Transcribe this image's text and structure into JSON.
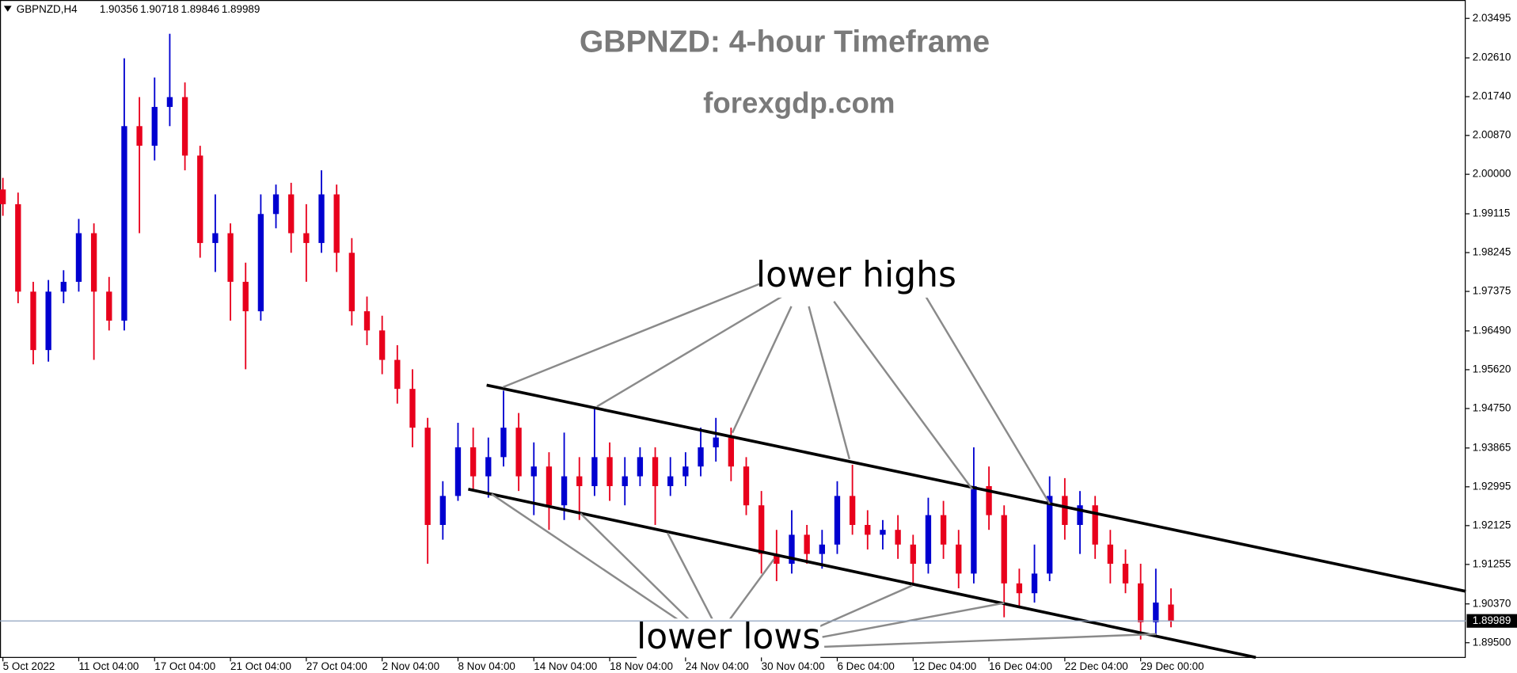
{
  "chart_data": {
    "type": "candlestick",
    "symbol": "GBPNZD,H4",
    "title": "GBPNZD: 4-hour Timeframe",
    "subtitle": "forexgdp.com",
    "annotations": [
      "lower highs",
      "lower lows"
    ],
    "up_color": "#0000d0",
    "down_color": "#e8001c",
    "ylim": [
      1.8917,
      2.0382
    ],
    "yticks": [
      2.03495,
      {
        "value": 2.0261,
        "label": "2.02610"
      },
      {
        "value": 2.0174,
        "label": "2.01740"
      },
      {
        "value": 2.0087,
        "label": "2.00870"
      },
      {
        "value": 2,
        "label": "2.00000"
      },
      1.99115,
      1.98245,
      1.97375,
      {
        "value": 1.9649,
        "label": "1.96490"
      },
      {
        "value": 1.9562,
        "label": "1.95620"
      },
      {
        "value": 1.9475,
        "label": "1.94750"
      },
      1.93865,
      1.92995,
      1.92125,
      1.91255,
      {
        "value": 1.9037,
        "label": "1.90370"
      },
      {
        "value": 1.895,
        "label": "1.89500"
      }
    ],
    "categories": [
      "5 Oct 2022",
      null,
      null,
      null,
      null,
      "11 Oct 04:00",
      null,
      null,
      null,
      null,
      "17 Oct 04:00",
      null,
      null,
      null,
      null,
      "21 Oct 04:00",
      null,
      null,
      null,
      null,
      "27 Oct 04:00",
      null,
      null,
      null,
      null,
      "2 Nov 04:00",
      null,
      null,
      null,
      null,
      "8 Nov 04:00",
      null,
      null,
      null,
      null,
      "14 Nov 04:00",
      null,
      null,
      null,
      null,
      "18 Nov 04:00",
      null,
      null,
      null,
      null,
      "24 Nov 04:00",
      null,
      null,
      null,
      null,
      "30 Nov 04:00",
      null,
      null,
      null,
      null,
      "6 Dec 04:00",
      null,
      null,
      null,
      null,
      "12 Dec 04:00",
      null,
      null,
      null,
      null,
      "16 Dec 04:00",
      null,
      null,
      null,
      null,
      "22 Dec 04:00",
      null,
      null,
      null,
      null,
      "29 Dec 00:00",
      null,
      null
    ],
    "ohlc": [
      [
        1.9966,
        1.9992,
        1.9907,
        1.9933
      ],
      [
        1.9933,
        1.9959,
        1.9711,
        1.9737
      ],
      [
        1.9737,
        1.9759,
        1.9574,
        1.9606
      ],
      [
        1.9606,
        1.9763,
        1.958,
        1.9737
      ],
      [
        1.9737,
        1.9785,
        1.9711,
        1.9759
      ],
      [
        1.9759,
        1.99,
        1.9737,
        1.9868
      ],
      [
        1.9868,
        1.989,
        1.9584,
        1.9737
      ],
      [
        1.9737,
        1.977,
        1.965,
        1.9672
      ],
      [
        1.9672,
        2.026,
        1.965,
        2.0108
      ],
      [
        2.0108,
        2.0173,
        1.9868,
        2.0064
      ],
      [
        2.0064,
        2.0217,
        2.0031,
        2.0151
      ],
      [
        2.0151,
        2.0315,
        2.0108,
        2.0173
      ],
      [
        2.0173,
        2.0206,
        2.0009,
        2.0042
      ],
      [
        2.0042,
        2.0064,
        1.9813,
        1.9846
      ],
      [
        1.9846,
        1.9955,
        1.9781,
        1.9868
      ],
      [
        1.9868,
        1.989,
        1.9672,
        1.9759
      ],
      [
        1.9759,
        1.9802,
        1.9563,
        1.9693
      ],
      [
        1.9693,
        1.9955,
        1.9672,
        1.9911
      ],
      [
        1.9911,
        1.9977,
        1.9879,
        1.9955
      ],
      [
        1.9955,
        1.9981,
        1.9824,
        1.9868
      ],
      [
        1.9868,
        1.9933,
        1.9759,
        1.9846
      ],
      [
        1.9846,
        2.0009,
        1.9824,
        1.9955
      ],
      [
        1.9955,
        1.9977,
        1.9781,
        1.9824
      ],
      [
        1.9824,
        1.9857,
        1.9661,
        1.9693
      ],
      [
        1.9693,
        1.9726,
        1.9617,
        1.965
      ],
      [
        1.965,
        1.9683,
        1.9552,
        1.9584
      ],
      [
        1.9584,
        1.9617,
        1.9486,
        1.9519
      ],
      [
        1.9519,
        1.9563,
        1.9388,
        1.9432
      ],
      [
        1.9432,
        1.9454,
        1.9127,
        1.9214
      ],
      [
        1.9214,
        1.9312,
        1.9181,
        1.9279
      ],
      [
        1.9279,
        1.9443,
        1.9268,
        1.9388
      ],
      [
        1.9388,
        1.9432,
        1.929,
        1.9323
      ],
      [
        1.9323,
        1.941,
        1.9275,
        1.9366
      ],
      [
        1.9366,
        1.9515,
        1.9345,
        1.9432
      ],
      [
        1.9432,
        1.9465,
        1.929,
        1.9323
      ],
      [
        1.9323,
        1.9399,
        1.9236,
        1.9345
      ],
      [
        1.9345,
        1.9377,
        1.9203,
        1.9258
      ],
      [
        1.9258,
        1.9421,
        1.9225,
        1.9323
      ],
      [
        1.9323,
        1.9366,
        1.9225,
        1.9301
      ],
      [
        1.9301,
        1.9475,
        1.9279,
        1.9366
      ],
      [
        1.9366,
        1.9399,
        1.9268,
        1.9301
      ],
      [
        1.9301,
        1.9366,
        1.9258,
        1.9323
      ],
      [
        1.9323,
        1.9388,
        1.9301,
        1.9366
      ],
      [
        1.9366,
        1.9388,
        1.9214,
        1.9301
      ],
      [
        1.9301,
        1.9366,
        1.9279,
        1.9323
      ],
      [
        1.9323,
        1.9377,
        1.9301,
        1.9345
      ],
      [
        1.9345,
        1.9432,
        1.9323,
        1.9388
      ],
      [
        1.9388,
        1.9454,
        1.9356,
        1.941
      ],
      [
        1.941,
        1.9432,
        1.9312,
        1.9345
      ],
      [
        1.9345,
        1.9366,
        1.9236,
        1.9258
      ],
      [
        1.9258,
        1.929,
        1.9105,
        1.9149
      ],
      [
        1.9149,
        1.9203,
        1.9088,
        1.9127
      ],
      [
        1.9127,
        1.9247,
        1.9105,
        1.9192
      ],
      [
        1.9192,
        1.9214,
        1.9127,
        1.9149
      ],
      [
        1.9149,
        1.9203,
        1.9116,
        1.917
      ],
      [
        1.917,
        1.9312,
        1.9149,
        1.9279
      ],
      [
        1.9279,
        1.9349,
        1.9192,
        1.9214
      ],
      [
        1.9214,
        1.9247,
        1.9159,
        1.9192
      ],
      [
        1.9192,
        1.9225,
        1.9159,
        1.9203
      ],
      [
        1.9203,
        1.9236,
        1.9138,
        1.917
      ],
      [
        1.917,
        1.9192,
        1.9083,
        1.9127
      ],
      [
        1.9127,
        1.9275,
        1.9105,
        1.9236
      ],
      [
        1.9236,
        1.9268,
        1.9138,
        1.917
      ],
      [
        1.917,
        1.9203,
        1.9072,
        1.9105
      ],
      [
        1.9105,
        1.9388,
        1.9083,
        1.9301
      ],
      [
        1.9301,
        1.9345,
        1.9203,
        1.9236
      ],
      [
        1.9236,
        1.9258,
        1.9007,
        1.9083
      ],
      [
        1.9083,
        1.9116,
        1.9029,
        1.9061
      ],
      [
        1.9061,
        1.917,
        1.904,
        1.9105
      ],
      [
        1.9105,
        1.9323,
        1.9088,
        1.9279
      ],
      [
        1.9279,
        1.9319,
        1.9181,
        1.9214
      ],
      [
        1.9214,
        1.929,
        1.9149,
        1.9258
      ],
      [
        1.9258,
        1.9279,
        1.9138,
        1.917
      ],
      [
        1.917,
        1.9203,
        1.9083,
        1.9127
      ],
      [
        1.9127,
        1.9159,
        1.9061,
        1.9083
      ],
      [
        1.9083,
        1.9127,
        1.8957,
        1.8996
      ],
      [
        1.8996,
        1.9116,
        1.8963,
        1.904
      ],
      [
        1.90356,
        1.90718,
        1.89846,
        1.89989
      ]
    ]
  }
}
